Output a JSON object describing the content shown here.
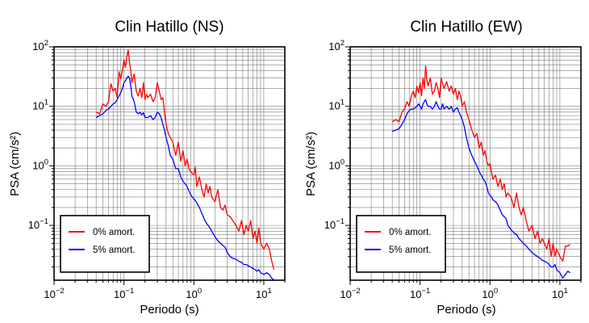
{
  "chart_data": [
    {
      "type": "line",
      "title": "Clin Hatillo (NS)",
      "xlabel": "Periodo (s)",
      "ylabel": "PSA (cm/s²)",
      "xscale": "log",
      "yscale": "log",
      "xlim": [
        0.01,
        20
      ],
      "ylim": [
        0.012,
        100
      ],
      "grid": true,
      "legend_position": "bottom-left",
      "x_ticks": [
        {
          "value": 0.01,
          "base": "10",
          "exp": "−2"
        },
        {
          "value": 0.1,
          "base": "10",
          "exp": "−1"
        },
        {
          "value": 1,
          "base": "10",
          "exp": "0"
        },
        {
          "value": 10,
          "base": "10",
          "exp": "1"
        }
      ],
      "y_ticks": [
        {
          "value": 0.1,
          "base": "10",
          "exp": "−1"
        },
        {
          "value": 1,
          "base": "10",
          "exp": "0"
        },
        {
          "value": 10,
          "base": "10",
          "exp": "1"
        },
        {
          "value": 100,
          "base": "10",
          "exp": "2"
        }
      ],
      "series": [
        {
          "name": "0% amort.",
          "color": "#ff0000",
          "x": [
            0.04,
            0.045,
            0.05,
            0.055,
            0.06,
            0.065,
            0.07,
            0.075,
            0.08,
            0.085,
            0.09,
            0.095,
            0.1,
            0.105,
            0.11,
            0.115,
            0.12,
            0.125,
            0.13,
            0.14,
            0.15,
            0.16,
            0.17,
            0.18,
            0.19,
            0.2,
            0.21,
            0.22,
            0.24,
            0.26,
            0.28,
            0.3,
            0.32,
            0.34,
            0.36,
            0.38,
            0.4,
            0.43,
            0.46,
            0.5,
            0.55,
            0.6,
            0.65,
            0.7,
            0.75,
            0.8,
            0.85,
            0.9,
            0.95,
            1.0,
            1.05,
            1.1,
            1.2,
            1.3,
            1.4,
            1.5,
            1.6,
            1.7,
            1.8,
            2.0,
            2.2,
            2.4,
            2.6,
            2.8,
            3.0,
            3.3,
            3.6,
            4.0,
            4.4,
            4.8,
            5.2,
            5.6,
            6.0,
            6.5,
            7.0,
            7.5,
            8.0,
            8.5,
            9.0,
            10,
            11,
            12,
            13,
            14
          ],
          "y": [
            8,
            7.5,
            11,
            10,
            12,
            24,
            18,
            20,
            14,
            38,
            29,
            40,
            60,
            45,
            70,
            88,
            55,
            40,
            25,
            35,
            18,
            15,
            20,
            14,
            25,
            13,
            16,
            14,
            16,
            12,
            14,
            25,
            18,
            13,
            14,
            8,
            5,
            3.5,
            3.0,
            2.5,
            1.5,
            2.5,
            1.2,
            1.8,
            1.0,
            1.3,
            0.9,
            0.8,
            0.75,
            0.7,
            0.95,
            0.45,
            0.65,
            0.4,
            0.3,
            0.5,
            0.35,
            0.45,
            0.3,
            0.25,
            0.4,
            0.2,
            0.18,
            0.22,
            0.15,
            0.14,
            0.12,
            0.1,
            0.08,
            0.12,
            0.07,
            0.1,
            0.08,
            0.12,
            0.06,
            0.08,
            0.05,
            0.09,
            0.05,
            0.04,
            0.05,
            0.04,
            0.025,
            0.018
          ]
        },
        {
          "name": "5% amort.",
          "color": "#0000ff",
          "x": [
            0.04,
            0.045,
            0.05,
            0.055,
            0.06,
            0.065,
            0.07,
            0.075,
            0.08,
            0.085,
            0.09,
            0.095,
            0.1,
            0.105,
            0.11,
            0.115,
            0.12,
            0.125,
            0.13,
            0.14,
            0.15,
            0.16,
            0.17,
            0.18,
            0.19,
            0.2,
            0.21,
            0.22,
            0.24,
            0.26,
            0.28,
            0.3,
            0.32,
            0.34,
            0.36,
            0.38,
            0.4,
            0.43,
            0.46,
            0.5,
            0.55,
            0.6,
            0.65,
            0.7,
            0.75,
            0.8,
            0.85,
            0.9,
            0.95,
            1.0,
            1.05,
            1.1,
            1.2,
            1.3,
            1.4,
            1.5,
            1.6,
            1.7,
            1.8,
            2.0,
            2.2,
            2.4,
            2.6,
            2.8,
            3.0,
            3.3,
            3.6,
            4.0,
            4.4,
            4.8,
            5.2,
            5.6,
            6.0,
            6.5,
            7.0,
            7.5,
            8.0,
            8.5,
            9.0,
            10,
            11,
            12,
            13,
            14
          ],
          "y": [
            6.5,
            7,
            7.5,
            8.5,
            9,
            10,
            11,
            11.5,
            13,
            15,
            17,
            20,
            25,
            27,
            30,
            32,
            30,
            22,
            15,
            12,
            8,
            7.5,
            8,
            7.2,
            7.8,
            6.5,
            6.5,
            6.5,
            7,
            6,
            6.5,
            8,
            7.5,
            6.5,
            5,
            4,
            3.0,
            2.2,
            1.5,
            1.3,
            0.9,
            0.9,
            0.65,
            0.55,
            0.5,
            0.45,
            0.38,
            0.33,
            0.3,
            0.28,
            0.26,
            0.24,
            0.2,
            0.16,
            0.13,
            0.11,
            0.1,
            0.09,
            0.08,
            0.065,
            0.055,
            0.05,
            0.046,
            0.043,
            0.035,
            0.03,
            0.028,
            0.027,
            0.025,
            0.024,
            0.022,
            0.022,
            0.021,
            0.02,
            0.019,
            0.018,
            0.017,
            0.018,
            0.016,
            0.015,
            0.016,
            0.015,
            0.013,
            0.012
          ]
        }
      ]
    },
    {
      "type": "line",
      "title": "Clin Hatillo (EW)",
      "xlabel": "Periodo (s)",
      "ylabel": "PSA (cm/s²)",
      "xscale": "log",
      "yscale": "log",
      "xlim": [
        0.01,
        20
      ],
      "ylim": [
        0.012,
        100
      ],
      "grid": true,
      "legend_position": "bottom-left",
      "x_ticks": [
        {
          "value": 0.01,
          "base": "10",
          "exp": "−2"
        },
        {
          "value": 0.1,
          "base": "10",
          "exp": "−1"
        },
        {
          "value": 1,
          "base": "10",
          "exp": "0"
        },
        {
          "value": 10,
          "base": "10",
          "exp": "1"
        }
      ],
      "y_ticks": [
        {
          "value": 0.1,
          "base": "10",
          "exp": "−1"
        },
        {
          "value": 1,
          "base": "10",
          "exp": "0"
        },
        {
          "value": 10,
          "base": "10",
          "exp": "1"
        },
        {
          "value": 100,
          "base": "10",
          "exp": "2"
        }
      ],
      "series": [
        {
          "name": "0% amort.",
          "color": "#ff0000",
          "x": [
            0.04,
            0.045,
            0.05,
            0.055,
            0.06,
            0.065,
            0.07,
            0.075,
            0.08,
            0.085,
            0.09,
            0.095,
            0.1,
            0.105,
            0.11,
            0.115,
            0.12,
            0.125,
            0.13,
            0.14,
            0.15,
            0.16,
            0.17,
            0.18,
            0.19,
            0.2,
            0.21,
            0.22,
            0.24,
            0.26,
            0.28,
            0.3,
            0.32,
            0.34,
            0.36,
            0.38,
            0.4,
            0.43,
            0.46,
            0.5,
            0.55,
            0.6,
            0.65,
            0.7,
            0.75,
            0.8,
            0.85,
            0.9,
            0.95,
            1.0,
            1.05,
            1.1,
            1.2,
            1.3,
            1.4,
            1.5,
            1.6,
            1.7,
            1.8,
            2.0,
            2.2,
            2.4,
            2.6,
            2.8,
            3.0,
            3.3,
            3.6,
            4.0,
            4.4,
            4.8,
            5.2,
            5.6,
            6.0,
            6.5,
            7.0,
            7.5,
            8.0,
            8.5,
            9.0,
            10,
            11,
            12,
            13,
            14
          ],
          "y": [
            5.5,
            6,
            5.5,
            8,
            9,
            12,
            10,
            15,
            18,
            14,
            22,
            17,
            25,
            15,
            30,
            20,
            48,
            28,
            22,
            30,
            16,
            18,
            25,
            20,
            14,
            30,
            24,
            20,
            26,
            18,
            22,
            16,
            20,
            13,
            18,
            15,
            10,
            12,
            8,
            6,
            4,
            3,
            3.5,
            2,
            2.5,
            1.5,
            1.8,
            1.2,
            1.0,
            1.1,
            0.8,
            0.6,
            0.7,
            0.45,
            0.6,
            0.4,
            0.5,
            0.3,
            0.35,
            0.3,
            0.2,
            0.35,
            0.2,
            0.15,
            0.2,
            0.12,
            0.08,
            0.1,
            0.06,
            0.08,
            0.05,
            0.06,
            0.05,
            0.04,
            0.06,
            0.03,
            0.05,
            0.03,
            0.04,
            0.03,
            0.025,
            0.045,
            0.045,
            0.048
          ]
        },
        {
          "name": "5% amort.",
          "color": "#0000ff",
          "x": [
            0.04,
            0.045,
            0.05,
            0.055,
            0.06,
            0.065,
            0.07,
            0.075,
            0.08,
            0.085,
            0.09,
            0.095,
            0.1,
            0.105,
            0.11,
            0.115,
            0.12,
            0.125,
            0.13,
            0.14,
            0.15,
            0.16,
            0.17,
            0.18,
            0.19,
            0.2,
            0.21,
            0.22,
            0.24,
            0.26,
            0.28,
            0.3,
            0.32,
            0.34,
            0.36,
            0.38,
            0.4,
            0.43,
            0.46,
            0.5,
            0.55,
            0.6,
            0.65,
            0.7,
            0.75,
            0.8,
            0.85,
            0.9,
            0.95,
            1.0,
            1.05,
            1.1,
            1.2,
            1.3,
            1.4,
            1.5,
            1.6,
            1.7,
            1.8,
            2.0,
            2.2,
            2.4,
            2.6,
            2.8,
            3.0,
            3.3,
            3.6,
            4.0,
            4.4,
            4.8,
            5.2,
            5.6,
            6.0,
            6.5,
            7.0,
            7.5,
            8.0,
            8.5,
            9.0,
            10,
            11,
            12,
            13,
            14
          ],
          "y": [
            3.8,
            4,
            4.2,
            5,
            6,
            7.5,
            8.5,
            9,
            9,
            9.5,
            10,
            11,
            10,
            9,
            11,
            12,
            13,
            11,
            10,
            10,
            9,
            10,
            12,
            10,
            9,
            9,
            11,
            9,
            10,
            9,
            10,
            8,
            9,
            9.5,
            8,
            7,
            6,
            4.5,
            3,
            2,
            1.5,
            1.2,
            1.0,
            0.8,
            0.7,
            0.6,
            0.55,
            0.45,
            0.35,
            0.32,
            0.3,
            0.27,
            0.25,
            0.22,
            0.18,
            0.15,
            0.14,
            0.13,
            0.1,
            0.085,
            0.075,
            0.07,
            0.06,
            0.055,
            0.05,
            0.045,
            0.04,
            0.035,
            0.032,
            0.03,
            0.028,
            0.026,
            0.025,
            0.024,
            0.022,
            0.02,
            0.02,
            0.022,
            0.018,
            0.016,
            0.013,
            0.015,
            0.017,
            0.016
          ]
        }
      ]
    }
  ]
}
